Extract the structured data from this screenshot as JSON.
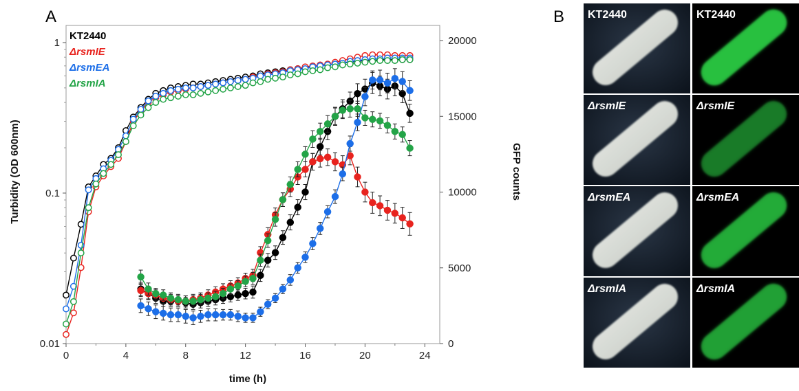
{
  "panels": {
    "a": {
      "letter": "A"
    },
    "b": {
      "letter": "B"
    }
  },
  "chart_data": {
    "type": "line",
    "title": "",
    "xlabel": "time (h)",
    "ylabel_left": "Turbidity (OD 600nm)",
    "ylabel_right": "GFP counts",
    "xlim": [
      0,
      25
    ],
    "x_ticks": [
      "0",
      "4",
      "8",
      "12",
      "16",
      "20",
      "24"
    ],
    "y_left_scale": "log",
    "y_left_lim": [
      0.01,
      1.3
    ],
    "y_left_ticks": [
      "0.01",
      "0.1",
      "1"
    ],
    "y_right_lim": [
      0,
      21000
    ],
    "y_right_ticks": [
      "0",
      "5000",
      "10000",
      "15000",
      "20000"
    ],
    "legend_position": "top-left",
    "legend": [
      {
        "label": "KT2440",
        "color": "#000000",
        "italic": false
      },
      {
        "label": "ΔrsmIE",
        "color": "#e8231e",
        "italic": true
      },
      {
        "label": "ΔrsmEA",
        "color": "#1c6ee8",
        "italic": true
      },
      {
        "label": "ΔrsmIA",
        "color": "#23a447",
        "italic": true
      }
    ],
    "turbidity_series": [
      {
        "name": "KT2440",
        "color": "#000000",
        "axis": "left",
        "marker": "open",
        "x": [
          0,
          0.5,
          1,
          1.5,
          2,
          2.5,
          3,
          3.5,
          4,
          4.5,
          5,
          5.5,
          6,
          6.5,
          7,
          7.5,
          8,
          8.5,
          9,
          9.5,
          10,
          10.5,
          11,
          11.5,
          12,
          12.5,
          13,
          13.5,
          14,
          14.5,
          15,
          15.5,
          16,
          16.5,
          17,
          17.5,
          18,
          18.5,
          19,
          19.5,
          20,
          20.5,
          21,
          21.5,
          22,
          22.5,
          23
        ],
        "y": [
          0.021,
          0.037,
          0.062,
          0.11,
          0.13,
          0.155,
          0.17,
          0.2,
          0.26,
          0.32,
          0.37,
          0.42,
          0.46,
          0.48,
          0.5,
          0.51,
          0.52,
          0.53,
          0.53,
          0.54,
          0.55,
          0.56,
          0.57,
          0.58,
          0.59,
          0.6,
          0.62,
          0.63,
          0.64,
          0.65,
          0.66,
          0.67,
          0.68,
          0.69,
          0.7,
          0.71,
          0.72,
          0.73,
          0.74,
          0.75,
          0.76,
          0.76,
          0.77,
          0.77,
          0.77,
          0.77,
          0.77
        ]
      },
      {
        "name": "ΔrsmIE",
        "color": "#e8231e",
        "axis": "left",
        "marker": "open",
        "x": [
          0,
          0.5,
          1,
          1.5,
          2,
          2.5,
          3,
          3.5,
          4,
          4.5,
          5,
          5.5,
          6,
          6.5,
          7,
          7.5,
          8,
          8.5,
          9,
          9.5,
          10,
          10.5,
          11,
          11.5,
          12,
          12.5,
          13,
          13.5,
          14,
          14.5,
          15,
          15.5,
          16,
          16.5,
          17,
          17.5,
          18,
          18.5,
          19,
          19.5,
          20,
          20.5,
          21,
          21.5,
          22,
          22.5,
          23
        ],
        "y": [
          0.0115,
          0.016,
          0.032,
          0.075,
          0.11,
          0.13,
          0.15,
          0.17,
          0.22,
          0.3,
          0.35,
          0.4,
          0.43,
          0.45,
          0.47,
          0.48,
          0.49,
          0.5,
          0.51,
          0.52,
          0.53,
          0.54,
          0.55,
          0.56,
          0.57,
          0.59,
          0.6,
          0.62,
          0.63,
          0.64,
          0.66,
          0.67,
          0.69,
          0.7,
          0.71,
          0.72,
          0.74,
          0.76,
          0.78,
          0.8,
          0.82,
          0.83,
          0.83,
          0.83,
          0.82,
          0.82,
          0.82
        ]
      },
      {
        "name": "ΔrsmEA",
        "color": "#1c6ee8",
        "axis": "left",
        "marker": "open",
        "x": [
          0,
          0.5,
          1,
          1.5,
          2,
          2.5,
          3,
          3.5,
          4,
          4.5,
          5,
          5.5,
          6,
          6.5,
          7,
          7.5,
          8,
          8.5,
          9,
          9.5,
          10,
          10.5,
          11,
          11.5,
          12,
          12.5,
          13,
          13.5,
          14,
          14.5,
          15,
          15.5,
          16,
          16.5,
          17,
          17.5,
          18,
          18.5,
          19,
          19.5,
          20,
          20.5,
          21,
          21.5,
          22,
          22.5,
          23
        ],
        "y": [
          0.017,
          0.024,
          0.045,
          0.105,
          0.125,
          0.145,
          0.165,
          0.195,
          0.24,
          0.31,
          0.36,
          0.41,
          0.44,
          0.46,
          0.48,
          0.49,
          0.5,
          0.5,
          0.51,
          0.52,
          0.53,
          0.54,
          0.55,
          0.56,
          0.57,
          0.58,
          0.6,
          0.61,
          0.62,
          0.63,
          0.65,
          0.66,
          0.67,
          0.69,
          0.7,
          0.71,
          0.72,
          0.73,
          0.75,
          0.76,
          0.77,
          0.78,
          0.78,
          0.79,
          0.79,
          0.79,
          0.79
        ]
      },
      {
        "name": "ΔrsmIA",
        "color": "#23a447",
        "axis": "left",
        "marker": "open",
        "x": [
          0,
          0.5,
          1,
          1.5,
          2,
          2.5,
          3,
          3.5,
          4,
          4.5,
          5,
          5.5,
          6,
          6.5,
          7,
          7.5,
          8,
          8.5,
          9,
          9.5,
          10,
          10.5,
          11,
          11.5,
          12,
          12.5,
          13,
          13.5,
          14,
          14.5,
          15,
          15.5,
          16,
          16.5,
          17,
          17.5,
          18,
          18.5,
          19,
          19.5,
          20,
          20.5,
          21,
          21.5,
          22,
          22.5,
          23
        ],
        "y": [
          0.0135,
          0.019,
          0.04,
          0.08,
          0.115,
          0.135,
          0.155,
          0.18,
          0.22,
          0.28,
          0.33,
          0.37,
          0.4,
          0.42,
          0.43,
          0.44,
          0.45,
          0.45,
          0.46,
          0.47,
          0.48,
          0.49,
          0.5,
          0.51,
          0.52,
          0.54,
          0.55,
          0.57,
          0.58,
          0.59,
          0.61,
          0.62,
          0.64,
          0.65,
          0.66,
          0.68,
          0.69,
          0.71,
          0.72,
          0.73,
          0.74,
          0.75,
          0.76,
          0.76,
          0.76,
          0.77,
          0.77
        ]
      }
    ],
    "gfp_series": [
      {
        "name": "KT2440",
        "color": "#000000",
        "axis": "right",
        "marker": "filled",
        "x": [
          5,
          5.5,
          6,
          6.5,
          7,
          7.5,
          8,
          8.5,
          9,
          9.5,
          10,
          10.5,
          11,
          11.5,
          12,
          12.5,
          13,
          13.5,
          14,
          14.5,
          15,
          15.5,
          16,
          16.5,
          17,
          17.5,
          18,
          18.5,
          19,
          19.5,
          20,
          20.5,
          21,
          21.5,
          22,
          22.5,
          23
        ],
        "y": [
          3600,
          3300,
          3000,
          2800,
          2800,
          2800,
          2700,
          2600,
          2700,
          2800,
          2900,
          3000,
          3100,
          3200,
          3300,
          3400,
          4500,
          5500,
          6000,
          7000,
          8000,
          9000,
          10000,
          12000,
          13000,
          14000,
          15000,
          15500,
          16000,
          16500,
          16800,
          17200,
          17000,
          16800,
          17000,
          16500,
          15200
        ],
        "err": [
          450,
          400,
          350,
          350,
          350,
          350,
          350,
          350,
          350,
          350,
          350,
          350,
          350,
          350,
          350,
          400,
          400,
          450,
          450,
          450,
          500,
          500,
          500,
          550,
          550,
          550,
          600,
          600,
          600,
          650,
          650,
          700,
          650,
          650,
          650,
          600,
          600
        ]
      },
      {
        "name": "ΔrsmIE",
        "color": "#e8231e",
        "axis": "right",
        "marker": "filled",
        "x": [
          5,
          5.5,
          6,
          6.5,
          7,
          7.5,
          8,
          8.5,
          9,
          9.5,
          10,
          10.5,
          11,
          11.5,
          12,
          12.5,
          13,
          13.5,
          14,
          14.5,
          15,
          15.5,
          16,
          16.5,
          17,
          17.5,
          18,
          18.5,
          19,
          19.5,
          20,
          20.5,
          21,
          21.5,
          22,
          22.5,
          23
        ],
        "y": [
          3500,
          3300,
          3200,
          3000,
          2900,
          2800,
          2800,
          2900,
          3000,
          3200,
          3400,
          3600,
          3800,
          4000,
          4300,
          4500,
          6000,
          7200,
          8500,
          9500,
          10200,
          11000,
          11500,
          12000,
          12200,
          12300,
          12000,
          11800,
          12400,
          11000,
          10000,
          9300,
          9100,
          8800,
          8600,
          8300,
          7900
        ],
        "err": [
          400,
          350,
          350,
          350,
          350,
          350,
          350,
          350,
          350,
          350,
          350,
          350,
          350,
          350,
          350,
          400,
          400,
          450,
          450,
          450,
          500,
          500,
          500,
          550,
          550,
          550,
          600,
          600,
          600,
          650,
          650,
          700,
          650,
          650,
          650,
          700,
          750
        ]
      },
      {
        "name": "ΔrsmEA",
        "color": "#1c6ee8",
        "axis": "right",
        "marker": "filled",
        "x": [
          5,
          5.5,
          6,
          6.5,
          7,
          7.5,
          8,
          8.5,
          9,
          9.5,
          10,
          10.5,
          11,
          11.5,
          12,
          12.5,
          13,
          13.5,
          14,
          14.5,
          15,
          15.5,
          16,
          16.5,
          17,
          17.5,
          18,
          18.5,
          19,
          19.5,
          20,
          20.5,
          21,
          21.5,
          22,
          22.5,
          23
        ],
        "y": [
          2500,
          2300,
          2100,
          2000,
          1900,
          1900,
          1800,
          1700,
          1800,
          1900,
          1900,
          1900,
          1900,
          1800,
          1700,
          1700,
          2100,
          2600,
          3000,
          3600,
          4200,
          5000,
          5700,
          6600,
          7600,
          8700,
          9700,
          11200,
          13200,
          14600,
          16300,
          17400,
          17400,
          17200,
          17500,
          17300,
          16700
        ],
        "err": [
          450,
          450,
          450,
          450,
          450,
          450,
          450,
          450,
          400,
          400,
          400,
          350,
          350,
          350,
          300,
          300,
          300,
          300,
          300,
          300,
          350,
          350,
          350,
          400,
          400,
          400,
          450,
          450,
          500,
          550,
          600,
          600,
          650,
          650,
          650,
          650,
          650
        ]
      },
      {
        "name": "ΔrsmIA",
        "color": "#23a447",
        "axis": "right",
        "marker": "filled",
        "x": [
          5,
          5.5,
          6,
          6.5,
          7,
          7.5,
          8,
          8.5,
          9,
          9.5,
          10,
          10.5,
          11,
          11.5,
          12,
          12.5,
          13,
          13.5,
          14,
          14.5,
          15,
          15.5,
          16,
          16.5,
          17,
          17.5,
          18,
          18.5,
          19,
          19.5,
          20,
          20.5,
          21,
          21.5,
          22,
          22.5,
          23
        ],
        "y": [
          4400,
          3600,
          3300,
          3200,
          3000,
          2900,
          2800,
          2800,
          2900,
          3000,
          3100,
          3300,
          3600,
          3800,
          4100,
          4300,
          5500,
          6800,
          8200,
          9500,
          10500,
          11500,
          12500,
          13500,
          14000,
          14500,
          15000,
          15400,
          15500,
          15500,
          14900,
          14800,
          14700,
          14400,
          14000,
          13800,
          12900
        ],
        "err": [
          450,
          400,
          350,
          350,
          350,
          350,
          350,
          350,
          350,
          350,
          350,
          350,
          350,
          350,
          350,
          400,
          400,
          450,
          450,
          450,
          500,
          500,
          500,
          550,
          550,
          550,
          550,
          550,
          550,
          500,
          500,
          500,
          500,
          500,
          500,
          500,
          500
        ]
      }
    ]
  },
  "micrograph_grid": {
    "rows": [
      {
        "brightfield_label": "KT2440",
        "fluorescence_label": "KT2440",
        "gfp_intensity": 1.0,
        "italic": false
      },
      {
        "brightfield_label": "ΔrsmIE",
        "fluorescence_label": "ΔrsmIE",
        "gfp_intensity": 0.35,
        "italic": true
      },
      {
        "brightfield_label": "ΔrsmEA",
        "fluorescence_label": "ΔrsmEA",
        "gfp_intensity": 0.75,
        "italic": true
      },
      {
        "brightfield_label": "ΔrsmIA",
        "fluorescence_label": "ΔrsmIA",
        "gfp_intensity": 0.65,
        "italic": true
      }
    ],
    "background_color": "#1b2533",
    "colony_color": "#d9dcd6",
    "gfp_color": "#2edc4a"
  }
}
